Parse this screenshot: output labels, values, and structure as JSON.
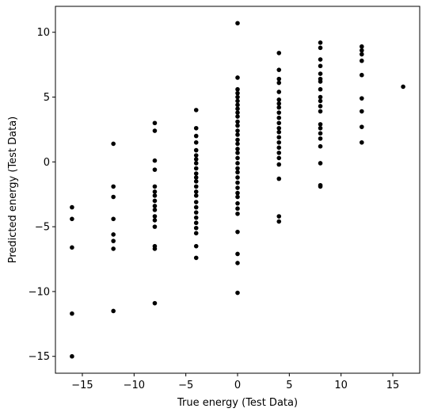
{
  "chart_data": {
    "type": "scatter",
    "title": "",
    "xlabel": "True energy (Test Data)",
    "ylabel": "Predicted energy (Test Data)",
    "xlim": [
      -17.6,
      17.6
    ],
    "ylim": [
      -16.3,
      12.0
    ],
    "xticks": [
      -15,
      -10,
      -5,
      0,
      5,
      10,
      15
    ],
    "yticks": [
      -15,
      -10,
      -5,
      0,
      5,
      10
    ],
    "xtick_labels": [
      "−15",
      "−10",
      "−5",
      "0",
      "5",
      "10",
      "15"
    ],
    "ytick_labels": [
      "−15",
      "−10",
      "−5",
      "0",
      "5",
      "10"
    ],
    "grid": false,
    "marker_color": "#000000",
    "series": [
      {
        "points": [
          [
            -16,
            -3.5
          ],
          [
            -16,
            -4.4
          ],
          [
            -16,
            -6.6
          ],
          [
            -16,
            -11.7
          ],
          [
            -16,
            -15.0
          ],
          [
            -12,
            1.4
          ],
          [
            -12,
            -1.9
          ],
          [
            -12,
            -2.7
          ],
          [
            -12,
            -4.4
          ],
          [
            -12,
            -5.6
          ],
          [
            -12,
            -6.1
          ],
          [
            -12,
            -6.7
          ],
          [
            -12,
            -11.5
          ],
          [
            -8,
            3.0
          ],
          [
            -8,
            2.4
          ],
          [
            -8,
            0.1
          ],
          [
            -8,
            -0.6
          ],
          [
            -8,
            -1.9
          ],
          [
            -8,
            -2.3
          ],
          [
            -8,
            -2.6
          ],
          [
            -8,
            -3.0
          ],
          [
            -8,
            -3.4
          ],
          [
            -8,
            -3.7
          ],
          [
            -8,
            -4.2
          ],
          [
            -8,
            -4.5
          ],
          [
            -8,
            -5.0
          ],
          [
            -8,
            -6.5
          ],
          [
            -8,
            -6.7
          ],
          [
            -8,
            -10.9
          ],
          [
            -4,
            4.0
          ],
          [
            -4,
            2.6
          ],
          [
            -4,
            2.0
          ],
          [
            -4,
            1.5
          ],
          [
            -4,
            0.9
          ],
          [
            -4,
            0.5
          ],
          [
            -4,
            0.2
          ],
          [
            -4,
            -0.1
          ],
          [
            -4,
            -0.5
          ],
          [
            -4,
            -0.9
          ],
          [
            -4,
            -1.2
          ],
          [
            -4,
            -1.5
          ],
          [
            -4,
            -1.9
          ],
          [
            -4,
            -2.3
          ],
          [
            -4,
            -2.6
          ],
          [
            -4,
            -3.1
          ],
          [
            -4,
            -3.5
          ],
          [
            -4,
            -3.9
          ],
          [
            -4,
            -4.3
          ],
          [
            -4,
            -4.7
          ],
          [
            -4,
            -5.1
          ],
          [
            -4,
            -5.5
          ],
          [
            -4,
            -6.5
          ],
          [
            -4,
            -7.4
          ],
          [
            0,
            10.7
          ],
          [
            0,
            6.5
          ],
          [
            0,
            5.6
          ],
          [
            0,
            5.3
          ],
          [
            0,
            5.0
          ],
          [
            0,
            4.7
          ],
          [
            0,
            4.4
          ],
          [
            0,
            4.1
          ],
          [
            0,
            3.8
          ],
          [
            0,
            3.5
          ],
          [
            0,
            3.1
          ],
          [
            0,
            2.8
          ],
          [
            0,
            2.4
          ],
          [
            0,
            2.1
          ],
          [
            0,
            1.7
          ],
          [
            0,
            1.4
          ],
          [
            0,
            1.0
          ],
          [
            0,
            0.7
          ],
          [
            0,
            0.3
          ],
          [
            0,
            -0.1
          ],
          [
            0,
            -0.5
          ],
          [
            0,
            -0.8
          ],
          [
            0,
            -1.2
          ],
          [
            0,
            -1.6
          ],
          [
            0,
            -2.0
          ],
          [
            0,
            -2.4
          ],
          [
            0,
            -2.7
          ],
          [
            0,
            -3.2
          ],
          [
            0,
            -3.6
          ],
          [
            0,
            -4.0
          ],
          [
            0,
            -5.4
          ],
          [
            0,
            -7.1
          ],
          [
            0,
            -7.8
          ],
          [
            0,
            -10.1
          ],
          [
            4,
            8.4
          ],
          [
            4,
            7.1
          ],
          [
            4,
            6.4
          ],
          [
            4,
            6.1
          ],
          [
            4,
            5.4
          ],
          [
            4,
            4.8
          ],
          [
            4,
            4.5
          ],
          [
            4,
            4.2
          ],
          [
            4,
            3.8
          ],
          [
            4,
            3.4
          ],
          [
            4,
            3.0
          ],
          [
            4,
            2.6
          ],
          [
            4,
            2.3
          ],
          [
            4,
            1.9
          ],
          [
            4,
            1.5
          ],
          [
            4,
            1.1
          ],
          [
            4,
            0.7
          ],
          [
            4,
            0.3
          ],
          [
            4,
            -0.2
          ],
          [
            4,
            -1.3
          ],
          [
            4,
            -4.2
          ],
          [
            4,
            -4.6
          ],
          [
            8,
            9.2
          ],
          [
            8,
            8.8
          ],
          [
            8,
            7.9
          ],
          [
            8,
            7.4
          ],
          [
            8,
            6.8
          ],
          [
            8,
            6.4
          ],
          [
            8,
            6.2
          ],
          [
            8,
            5.6
          ],
          [
            8,
            5.0
          ],
          [
            8,
            4.7
          ],
          [
            8,
            4.3
          ],
          [
            8,
            3.9
          ],
          [
            8,
            2.9
          ],
          [
            8,
            2.6
          ],
          [
            8,
            2.2
          ],
          [
            8,
            1.8
          ],
          [
            8,
            1.2
          ],
          [
            8,
            -0.1
          ],
          [
            8,
            -1.8
          ],
          [
            8,
            -1.9
          ],
          [
            12,
            8.9
          ],
          [
            12,
            8.6
          ],
          [
            12,
            8.3
          ],
          [
            12,
            7.8
          ],
          [
            12,
            6.7
          ],
          [
            12,
            4.9
          ],
          [
            12,
            3.9
          ],
          [
            12,
            2.7
          ],
          [
            12,
            1.5
          ],
          [
            16,
            5.8
          ]
        ]
      }
    ]
  }
}
